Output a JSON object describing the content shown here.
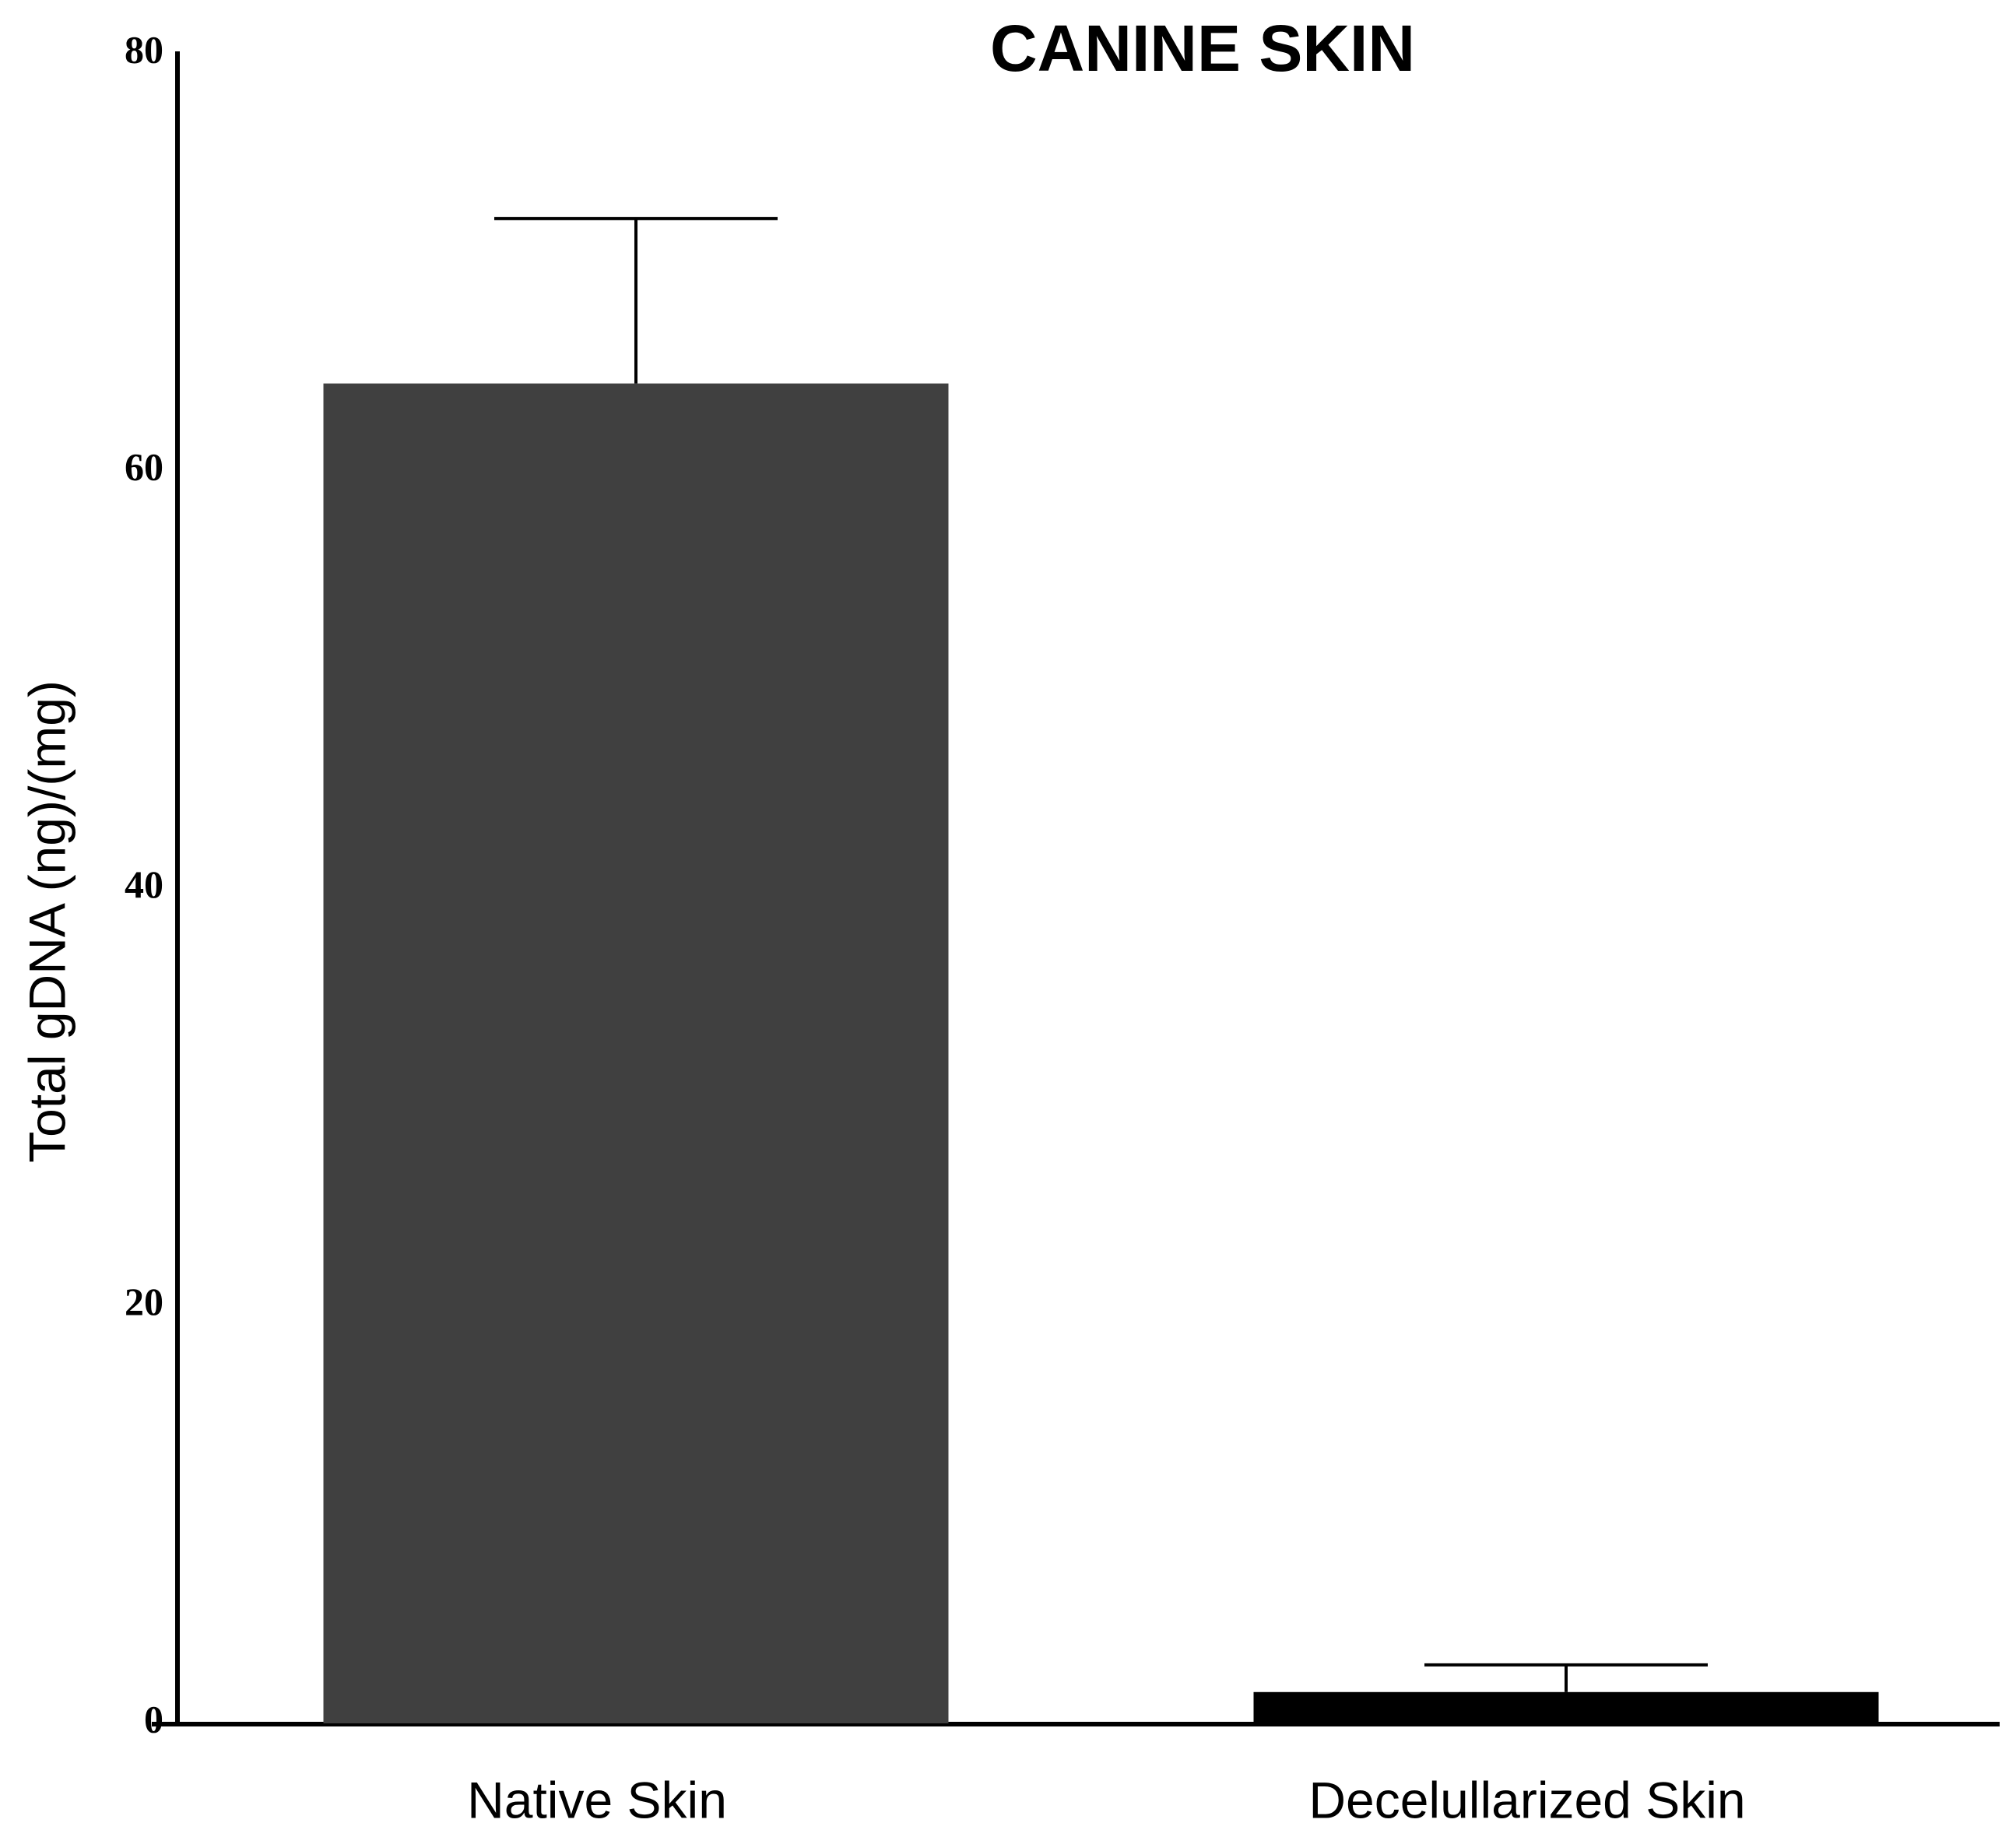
{
  "chart_data": {
    "type": "bar",
    "title": "CANINE  SKIN",
    "y_label": "Total gDNA (ng)/(mg)",
    "categories": [
      "Native Skin",
      "Decelullarized Skin"
    ],
    "values": [
      64.2,
      1.5
    ],
    "errors": [
      7.9,
      1.3
    ],
    "colors": [
      "#404040",
      "#000000"
    ],
    "ylim": [
      0,
      80
    ],
    "yticks": [
      0,
      20,
      40,
      60,
      80
    ],
    "grid": false
  }
}
